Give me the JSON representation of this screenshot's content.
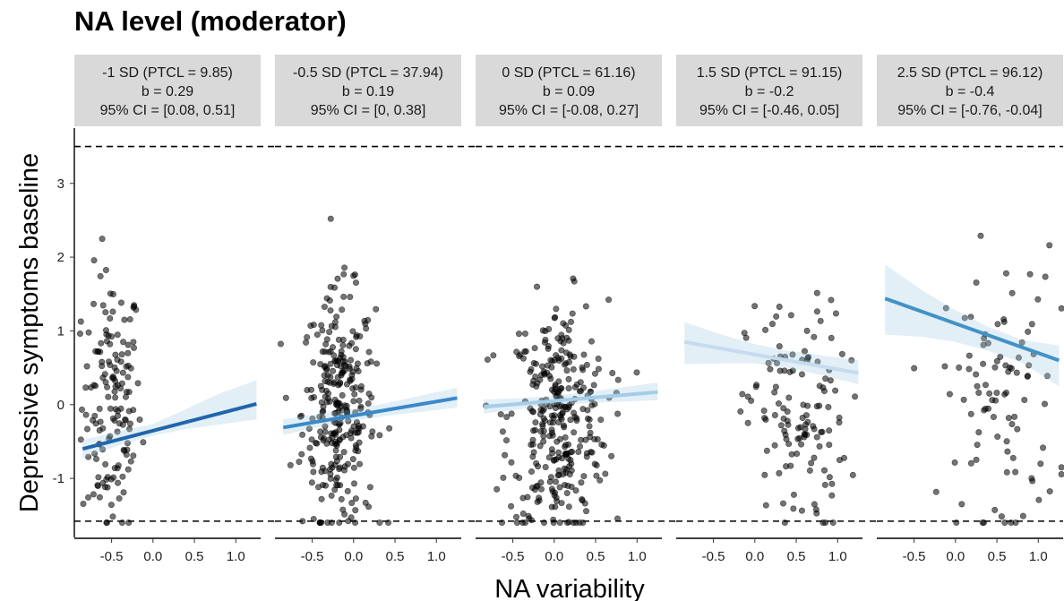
{
  "title": "NA level (moderator)",
  "chart_data": {
    "type": "scatter",
    "title": "NA level (moderator)",
    "xlabel": "NA variability",
    "ylabel": "Depressive symptoms baseline",
    "xlim": [
      -0.95,
      1.3
    ],
    "ylim": [
      -1.8,
      3.75
    ],
    "x_ticks": [
      "-0.5",
      "0.0",
      "0.5",
      "1.0"
    ],
    "y_ticks": [
      "-1",
      "0",
      "1",
      "2",
      "3"
    ],
    "hlines": [
      3.5,
      -1.58
    ],
    "grid": false,
    "panels": [
      {
        "label_lines": [
          "-1 SD (PTCL = 9.85)",
          "b = 0.29",
          "95% CI = [0.08, 0.51]"
        ],
        "line_color": "#2166ac",
        "fit": {
          "x": [
            -0.85,
            1.25
          ],
          "y": [
            -0.6,
            0.01
          ]
        },
        "band": {
          "x": [
            -0.85,
            -0.4,
            0.0,
            0.4,
            0.8,
            1.25
          ],
          "lower": [
            -0.72,
            -0.55,
            -0.42,
            -0.33,
            -0.27,
            -0.2
          ],
          "upper": [
            -0.48,
            -0.36,
            -0.26,
            -0.06,
            0.15,
            0.33
          ]
        },
        "n_points": 150,
        "x_center": -0.5,
        "x_spread": 0.18,
        "y_center": 0.0,
        "y_spread": 0.9
      },
      {
        "label_lines": [
          "-0.5 SD (PTCL = 37.94)",
          "b = 0.19",
          "95% CI = [0, 0.38]"
        ],
        "line_color": "#3a89c9",
        "fit": {
          "x": [
            -0.85,
            1.25
          ],
          "y": [
            -0.31,
            0.09
          ]
        },
        "band": {
          "x": [
            -0.85,
            -0.4,
            0.0,
            0.4,
            0.8,
            1.25
          ],
          "lower": [
            -0.41,
            -0.3,
            -0.22,
            -0.15,
            -0.1,
            -0.04
          ],
          "upper": [
            -0.2,
            -0.12,
            -0.06,
            0.02,
            0.12,
            0.23
          ]
        },
        "n_points": 290,
        "x_center": -0.18,
        "x_spread": 0.22,
        "y_center": -0.1,
        "y_spread": 0.8
      },
      {
        "label_lines": [
          "0 SD (PTCL = 61.16)",
          "b = 0.09",
          "95% CI = [-0.08, 0.27]"
        ],
        "line_color": "#a6cde8",
        "fit": {
          "x": [
            -0.85,
            1.25
          ],
          "y": [
            -0.03,
            0.17
          ]
        },
        "band": {
          "x": [
            -0.85,
            -0.4,
            0.0,
            0.4,
            0.8,
            1.25
          ],
          "lower": [
            -0.12,
            -0.06,
            0.0,
            0.02,
            0.04,
            0.06
          ],
          "upper": [
            0.07,
            0.09,
            0.12,
            0.17,
            0.23,
            0.3
          ]
        },
        "n_points": 320,
        "x_center": 0.05,
        "x_spread": 0.3,
        "y_center": -0.2,
        "y_spread": 0.8
      },
      {
        "label_lines": [
          "1.5 SD (PTCL = 91.15)",
          "b = -0.2",
          "95% CI = [-0.46, 0.05]"
        ],
        "line_color": "#c6dbef",
        "fit": {
          "x": [
            -0.85,
            1.25
          ],
          "y": [
            0.85,
            0.43
          ]
        },
        "band": {
          "x": [
            -0.85,
            -0.4,
            0.0,
            0.4,
            0.8,
            1.25
          ],
          "lower": [
            0.55,
            0.56,
            0.56,
            0.5,
            0.4,
            0.28
          ],
          "upper": [
            1.12,
            0.95,
            0.82,
            0.73,
            0.67,
            0.6
          ]
        },
        "n_points": 130,
        "x_center": 0.5,
        "x_spread": 0.3,
        "y_center": -0.2,
        "y_spread": 0.8
      },
      {
        "label_lines": [
          "2.5 SD (PTCL = 96.12)",
          "b = -0.4",
          "95% CI = [-0.76, -0.04]"
        ],
        "line_color": "#4292c6",
        "fit": {
          "x": [
            -0.85,
            1.25
          ],
          "y": [
            1.44,
            0.6
          ]
        },
        "band": {
          "x": [
            -0.85,
            -0.4,
            0.0,
            0.4,
            0.8,
            1.25
          ],
          "lower": [
            0.95,
            0.92,
            0.85,
            0.73,
            0.57,
            0.25
          ],
          "upper": [
            1.9,
            1.55,
            1.28,
            1.05,
            0.88,
            0.8
          ]
        },
        "n_points": 95,
        "x_center": 0.55,
        "x_spread": 0.35,
        "y_center": 0.1,
        "y_spread": 1.0
      }
    ]
  }
}
